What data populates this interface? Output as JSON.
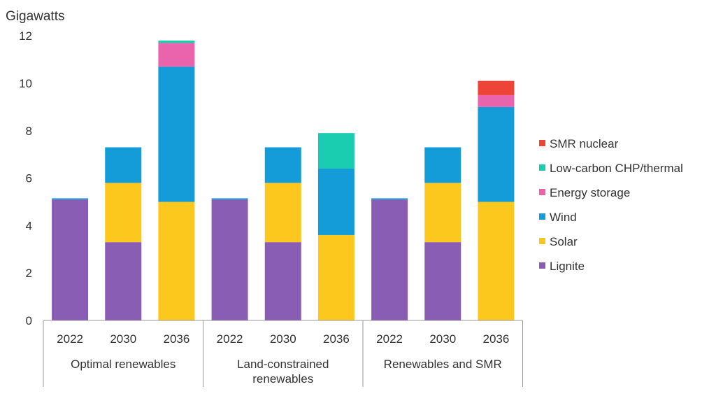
{
  "chart_data": {
    "type": "bar",
    "stacked": true,
    "ylabel": "Gigawatts",
    "ylim": [
      0,
      12
    ],
    "yticks": [
      0,
      2,
      4,
      6,
      8,
      10,
      12
    ],
    "grid": false,
    "legend_position": "right",
    "groups": [
      {
        "label": "Optimal renewables",
        "lines": [
          "Optimal renewables"
        ],
        "categories": [
          "2022",
          "2030",
          "2036"
        ]
      },
      {
        "label": "Land-constrained renewables",
        "lines": [
          "Land-constrained",
          "renewables"
        ],
        "categories": [
          "2022",
          "2030",
          "2036"
        ]
      },
      {
        "label": "Renewables and SMR",
        "lines": [
          "Renewables and SMR"
        ],
        "categories": [
          "2022",
          "2030",
          "2036"
        ]
      }
    ],
    "series": [
      {
        "name": "Lignite",
        "color": "#8A5DB5",
        "values": [
          5.1,
          3.3,
          0,
          5.1,
          3.3,
          0,
          5.1,
          3.3,
          0
        ]
      },
      {
        "name": "Solar",
        "color": "#FCC81E",
        "values": [
          0,
          2.5,
          5.0,
          0,
          2.5,
          3.6,
          0,
          2.5,
          5.0
        ]
      },
      {
        "name": "Wind",
        "color": "#149CD8",
        "values": [
          0.05,
          1.5,
          5.7,
          0.05,
          1.5,
          2.8,
          0.05,
          1.5,
          4.0
        ]
      },
      {
        "name": "Energy storage",
        "color": "#E963AD",
        "values": [
          0,
          0,
          1.0,
          0,
          0,
          0,
          0,
          0,
          0.5
        ]
      },
      {
        "name": "Low-carbon CHP/thermal",
        "color": "#1BCDB0",
        "values": [
          0,
          0,
          0.1,
          0,
          0,
          1.5,
          0,
          0,
          0
        ]
      },
      {
        "name": "SMR nuclear",
        "color": "#EE4438",
        "values": [
          0,
          0,
          0,
          0,
          0,
          0,
          0,
          0,
          0.6
        ]
      }
    ]
  }
}
